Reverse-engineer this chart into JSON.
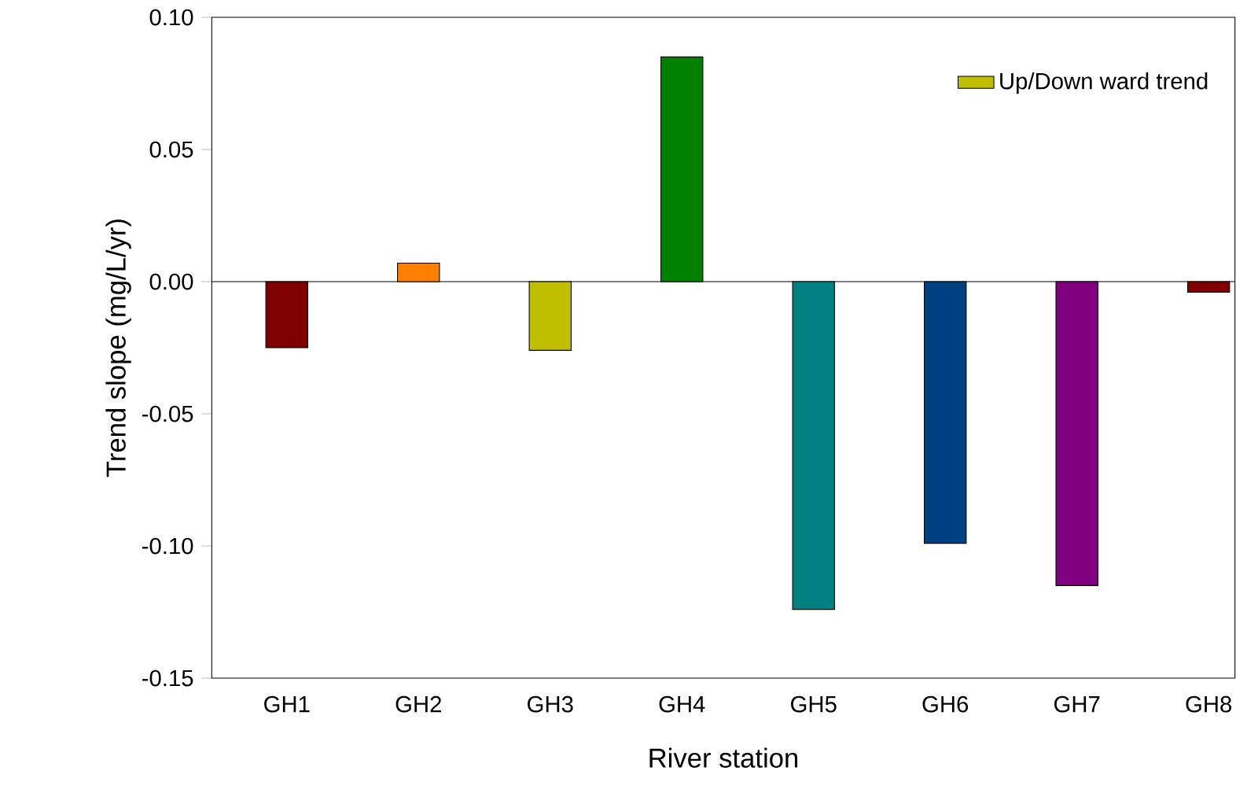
{
  "chart_data": {
    "type": "bar",
    "xlabel": "River station",
    "ylabel": "Trend slope (mg/L/yr)",
    "categories": [
      "GH1",
      "GH2",
      "GH3",
      "GH4",
      "GH5",
      "GH6",
      "GH7",
      "GH8"
    ],
    "series": [
      {
        "name": "Up/Down ward trend",
        "color": "#bfbf00",
        "colors": [
          "#800000",
          "#ff8000",
          "#bfbf00",
          "#008000",
          "#008080",
          "#004080",
          "#800080",
          "#800000"
        ],
        "values": [
          -0.025,
          0.007,
          -0.026,
          0.085,
          -0.124,
          -0.099,
          -0.115,
          -0.004
        ]
      }
    ],
    "ylim": [
      -0.15,
      0.1
    ],
    "yticks": [
      {
        "value": -0.15,
        "label": "-0.15"
      },
      {
        "value": -0.1,
        "label": "-0.10"
      },
      {
        "value": -0.05,
        "label": "-0.05"
      },
      {
        "value": 0,
        "label": "0.00"
      },
      {
        "value": 0.05,
        "label": "0.05"
      },
      {
        "value": 0.1,
        "label": "0.10"
      }
    ],
    "ref_lines": [
      {
        "axis": "y",
        "value": 0,
        "color": "#000000"
      }
    ],
    "legend": "top right"
  }
}
